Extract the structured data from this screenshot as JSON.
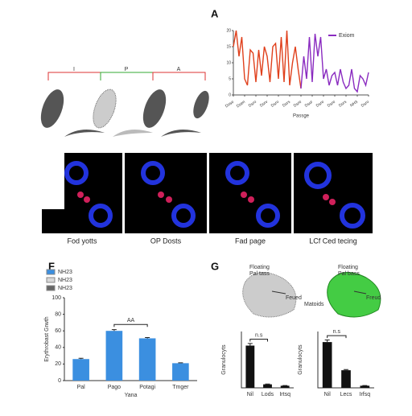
{
  "panels": {
    "a": "A",
    "f": "F",
    "g": "G"
  },
  "diagram": {
    "brackets": [
      "I",
      "P",
      "A"
    ]
  },
  "micrographs": [
    "Fod yotts",
    "OP Dosts",
    "Fad page",
    "LCf Ced tecing"
  ],
  "g_diagrams": [
    {
      "title": "Floating",
      "subtitle": "Pal tass",
      "label": "Feued"
    },
    {
      "title": "Floating",
      "subtitle": "Pal bass",
      "side": "Matoids",
      "label": "Freud"
    }
  ],
  "chart_data": [
    {
      "type": "line",
      "x_label": "Passge",
      "legend": "top-right",
      "ylim": [
        0,
        20
      ],
      "yticks": [
        0,
        5,
        10,
        15,
        20
      ],
      "xlim": [
        0,
        48
      ],
      "xticks": [
        {
          "value": 0,
          "label": "Dose"
        },
        {
          "value": 4,
          "label": "Dsen"
        },
        {
          "value": 8,
          "label": "Dsro"
        },
        {
          "value": 12,
          "label": "Dsrv"
        },
        {
          "value": 16,
          "label": "Dsro"
        },
        {
          "value": 20,
          "label": "Dsrs"
        },
        {
          "value": 24,
          "label": "Dsre"
        },
        {
          "value": 28,
          "label": "Dsur"
        },
        {
          "value": 32,
          "label": "Dsre"
        },
        {
          "value": 36,
          "label": "Dsre"
        },
        {
          "value": 40,
          "label": "Dsrs"
        },
        {
          "value": 44,
          "label": "NH3"
        },
        {
          "value": 48,
          "label": "Dsro"
        }
      ],
      "series": [
        {
          "color": "#e0401c",
          "x": [
            0,
            1,
            2,
            3,
            4,
            5,
            6,
            7,
            8,
            9,
            10,
            11,
            12,
            13,
            14,
            15,
            16,
            17,
            18,
            19,
            20,
            21,
            22,
            23,
            24
          ],
          "values": [
            15,
            20,
            12,
            18,
            5,
            3,
            14,
            13,
            4,
            14,
            6,
            15,
            12,
            4,
            15,
            16,
            5,
            18,
            4,
            20,
            3,
            10,
            15,
            8,
            2
          ]
        },
        {
          "name": "Exiom",
          "color": "#8a2bc0",
          "x": [
            24,
            25,
            26,
            27,
            28,
            29,
            30,
            31,
            32,
            33,
            34,
            35,
            36,
            37,
            38,
            39,
            40,
            41,
            42,
            43,
            44,
            45,
            46,
            47,
            48
          ],
          "values": [
            2,
            12,
            5,
            18,
            4,
            19,
            12,
            18,
            5,
            8,
            3,
            6,
            7,
            3,
            8,
            4,
            2,
            3,
            8,
            2,
            1,
            6,
            5,
            3,
            7
          ]
        }
      ]
    },
    {
      "type": "bar",
      "y_label": "Erythrobast Grwth",
      "x_label": "Yana",
      "legend": "top-left",
      "annotation": "AA",
      "ylim": [
        0,
        100
      ],
      "yticks": [
        0,
        20,
        40,
        60,
        80,
        100
      ],
      "categories": [
        "Pal",
        "Pago",
        "Potagi",
        "Tmger"
      ],
      "series": [
        {
          "name": "NH23",
          "color": "#3b8fe0",
          "values": [
            26,
            60,
            51,
            21
          ],
          "errors": [
            1,
            1.5,
            1,
            0.5
          ]
        },
        {
          "name": "NH23",
          "color": "#d8d8d8",
          "values": [
            null,
            null,
            null,
            null
          ]
        },
        {
          "name": "NH23",
          "color": "#666666",
          "values": [
            null,
            null,
            null,
            null
          ]
        }
      ]
    },
    {
      "type": "bar",
      "y_label": "Granulocyts",
      "annotation": "n.s",
      "ylim": [
        0,
        80
      ],
      "categories": [
        "Nil",
        "Lods",
        "Irtsq"
      ],
      "series": [
        {
          "color": "#111111",
          "values": [
            60,
            5,
            3
          ],
          "errors": [
            3,
            0.5,
            0.3
          ]
        }
      ]
    },
    {
      "type": "bar",
      "y_label": "Granulocyts",
      "annotation": "n.s",
      "ylim": [
        0,
        80
      ],
      "categories": [
        "Nil",
        "Lecs",
        "Irfsq"
      ],
      "series": [
        {
          "color": "#111111",
          "values": [
            65,
            25,
            3
          ],
          "errors": [
            3,
            1,
            0.3
          ]
        }
      ]
    }
  ]
}
